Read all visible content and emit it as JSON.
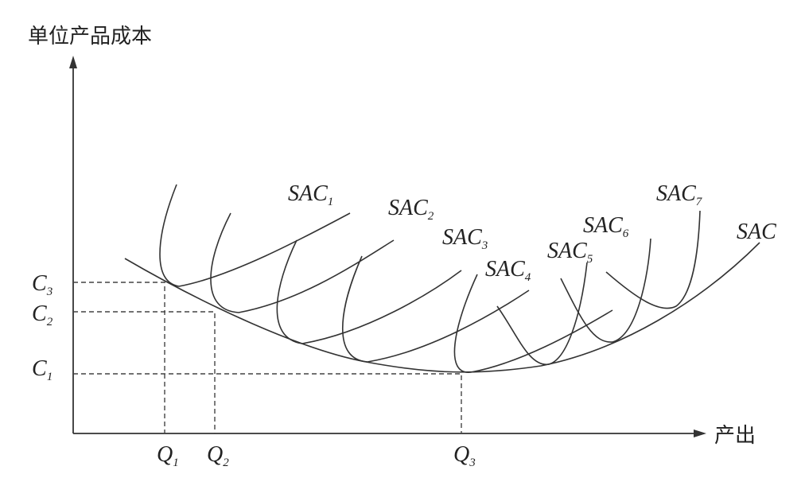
{
  "axes": {
    "y_label": "单位产品成本",
    "x_label": "产出"
  },
  "cost_levels": [
    {
      "main": "C",
      "sub": "3"
    },
    {
      "main": "C",
      "sub": "2"
    },
    {
      "main": "C",
      "sub": "1"
    }
  ],
  "outputs": [
    {
      "main": "Q",
      "sub": "1"
    },
    {
      "main": "Q",
      "sub": "2"
    },
    {
      "main": "Q",
      "sub": "3"
    }
  ],
  "curves": [
    {
      "main": "SAC",
      "sub": "1"
    },
    {
      "main": "SAC",
      "sub": "2"
    },
    {
      "main": "SAC",
      "sub": "3"
    },
    {
      "main": "SAC",
      "sub": "4"
    },
    {
      "main": "SAC",
      "sub": "5"
    },
    {
      "main": "SAC",
      "sub": "6"
    },
    {
      "main": "SAC",
      "sub": "7"
    },
    {
      "main": "SAC"
    }
  ]
}
